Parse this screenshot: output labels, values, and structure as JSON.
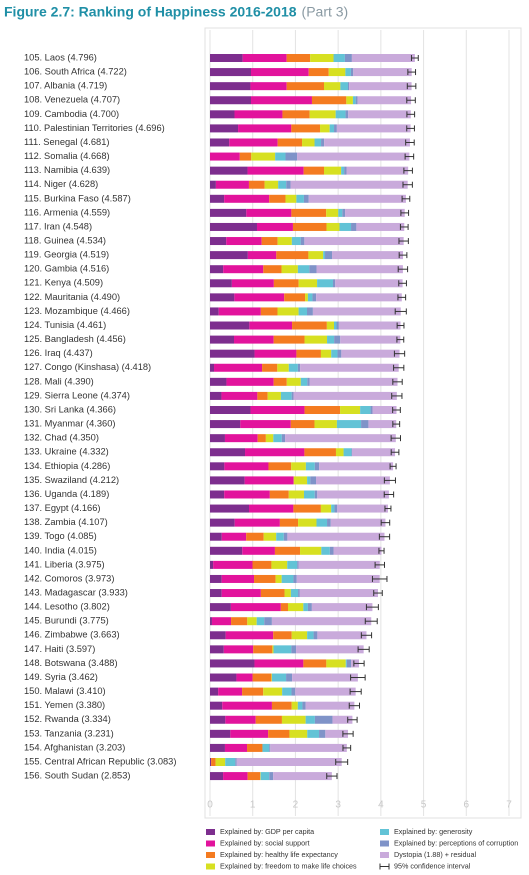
{
  "chart_data": {
    "type": "stacked-bar-horizontal",
    "title": "Figure 2.7: Ranking of Happiness 2016-2018",
    "subtitle": "(Part 3)",
    "categories": [
      "105. Laos (4.796)",
      "106. South Africa (4.722)",
      "107. Albania (4.719)",
      "108. Venezuela (4.707)",
      "109. Cambodia (4.700)",
      "110. Palestinian Territories (4.696)",
      "111. Senegal (4.681)",
      "112. Somalia (4.668)",
      "113. Namibia (4.639)",
      "114. Niger (4.628)",
      "115. Burkina Faso (4.587)",
      "116. Armenia (4.559)",
      "117. Iran (4.548)",
      "118. Guinea (4.534)",
      "119. Georgia (4.519)",
      "120. Gambia (4.516)",
      "121. Kenya (4.509)",
      "122. Mauritania (4.490)",
      "123. Mozambique (4.466)",
      "124. Tunisia (4.461)",
      "125. Bangladesh (4.456)",
      "126. Iraq (4.437)",
      "127. Congo (Kinshasa) (4.418)",
      "128. Mali (4.390)",
      "129. Sierra Leone (4.374)",
      "130. Sri Lanka (4.366)",
      "131. Myanmar (4.360)",
      "132. Chad (4.350)",
      "133. Ukraine (4.332)",
      "134. Ethiopia (4.286)",
      "135. Swaziland (4.212)",
      "136. Uganda (4.189)",
      "137. Egypt (4.166)",
      "138. Zambia (4.107)",
      "139. Togo (4.085)",
      "140. India (4.015)",
      "141. Liberia (3.975)",
      "142. Comoros (3.973)",
      "143. Madagascar (3.933)",
      "144. Lesotho (3.802)",
      "145. Burundi (3.775)",
      "146. Zimbabwe (3.663)",
      "147. Haiti (3.597)",
      "148. Botswana (3.488)",
      "149. Syria (3.462)",
      "150. Malawi (3.410)",
      "151. Yemen (3.380)",
      "152. Rwanda (3.334)",
      "153. Tanzania (3.231)",
      "154. Afghanistan (3.203)",
      "155. Central African Republic (3.083)",
      "156. South Sudan (2.853)"
    ],
    "series": [
      {
        "name": "Explained by: GDP per capita",
        "color": "#7d2e8e",
        "values": [
          0.764,
          0.96,
          0.947,
          0.96,
          0.574,
          0.657,
          0.45,
          0.0,
          0.879,
          0.138,
          0.331,
          0.85,
          1.1,
          0.38,
          0.886,
          0.308,
          0.512,
          0.57,
          0.204,
          0.921,
          0.562,
          1.043,
          0.094,
          0.385,
          0.268,
          0.949,
          0.71,
          0.35,
          0.82,
          0.336,
          0.811,
          0.332,
          0.913,
          0.578,
          0.275,
          0.755,
          0.073,
          0.274,
          0.274,
          0.489,
          0.046,
          0.366,
          0.323,
          1.041,
          0.619,
          0.191,
          0.287,
          0.359,
          0.476,
          0.35,
          0.026,
          0.306
        ]
      },
      {
        "name": "Explained by: social support",
        "color": "#e2139c",
        "values": [
          1.03,
          1.351,
          0.848,
          1.427,
          1.122,
          1.247,
          1.134,
          0.698,
          1.313,
          0.774,
          1.056,
          1.055,
          0.842,
          0.829,
          0.666,
          0.939,
          0.983,
          1.167,
          0.986,
          1.0,
          0.928,
          0.98,
          1.125,
          1.105,
          0.841,
          1.265,
          1.181,
          0.766,
          1.39,
          1.033,
          1.149,
          1.069,
          1.039,
          1.058,
          0.572,
          0.765,
          0.922,
          0.757,
          0.916,
          1.169,
          0.447,
          1.114,
          0.688,
          1.145,
          0.378,
          0.56,
          1.163,
          0.711,
          0.885,
          0.517,
          0.0,
          0.575
        ]
      },
      {
        "name": "Explained by: healthy life expectancy",
        "color": "#f47b20",
        "values": [
          0.551,
          0.469,
          0.874,
          0.805,
          0.637,
          0.672,
          0.571,
          0.268,
          0.477,
          0.366,
          0.38,
          0.815,
          0.785,
          0.375,
          0.752,
          0.428,
          0.581,
          0.489,
          0.39,
          0.815,
          0.723,
          0.574,
          0.357,
          0.308,
          0.242,
          0.831,
          0.555,
          0.192,
          0.739,
          0.532,
          0.0,
          0.443,
          0.644,
          0.426,
          0.41,
          0.588,
          0.443,
          0.505,
          0.555,
          0.168,
          0.38,
          0.433,
          0.449,
          0.538,
          0.44,
          0.495,
          0.463,
          0.614,
          0.499,
          0.361,
          0.105,
          0.295
        ]
      },
      {
        "name": "Explained by: freedom to make life choices",
        "color": "#d7e021",
        "values": [
          0.547,
          0.389,
          0.383,
          0.154,
          0.609,
          0.225,
          0.292,
          0.559,
          0.401,
          0.318,
          0.255,
          0.283,
          0.305,
          0.332,
          0.346,
          0.382,
          0.431,
          0.066,
          0.494,
          0.167,
          0.527,
          0.241,
          0.269,
          0.327,
          0.309,
          0.47,
          0.525,
          0.174,
          0.178,
          0.344,
          0.313,
          0.356,
          0.241,
          0.431,
          0.293,
          0.498,
          0.37,
          0.142,
          0.148,
          0.359,
          0.22,
          0.361,
          0.026,
          0.455,
          0.013,
          0.443,
          0.143,
          0.555,
          0.417,
          0.0,
          0.225,
          0.01
        ]
      },
      {
        "name": "Explained by: generosity",
        "color": "#62c3d6",
        "values": [
          0.266,
          0.13,
          0.178,
          0.064,
          0.232,
          0.103,
          0.153,
          0.243,
          0.07,
          0.188,
          0.177,
          0.095,
          0.27,
          0.207,
          0.043,
          0.269,
          0.372,
          0.106,
          0.197,
          0.059,
          0.166,
          0.148,
          0.212,
          0.153,
          0.252,
          0.244,
          0.566,
          0.198,
          0.187,
          0.209,
          0.074,
          0.252,
          0.076,
          0.247,
          0.177,
          0.2,
          0.233,
          0.275,
          0.169,
          0.107,
          0.176,
          0.151,
          0.419,
          0.025,
          0.331,
          0.218,
          0.108,
          0.217,
          0.276,
          0.158,
          0.235,
          0.202
        ]
      },
      {
        "name": "Explained by: perceptions of corruption",
        "color": "#7f93c8",
        "values": [
          0.164,
          0.055,
          0.027,
          0.047,
          0.062,
          0.066,
          0.072,
          0.27,
          0.056,
          0.102,
          0.113,
          0.064,
          0.125,
          0.086,
          0.164,
          0.167,
          0.053,
          0.088,
          0.138,
          0.055,
          0.143,
          0.089,
          0.053,
          0.052,
          0.045,
          0.047,
          0.172,
          0.078,
          0.01,
          0.1,
          0.135,
          0.06,
          0.067,
          0.087,
          0.085,
          0.085,
          0.033,
          0.078,
          0.041,
          0.093,
          0.18,
          0.089,
          0.11,
          0.1,
          0.141,
          0.089,
          0.077,
          0.411,
          0.147,
          0.025,
          0.035,
          0.091
        ]
      },
      {
        "name": "Dystopia (1.88) + residual",
        "color": "#c9aadb",
        "values": [
          1.474,
          1.368,
          1.462,
          1.25,
          1.464,
          1.726,
          2.009,
          2.63,
          1.443,
          2.742,
          2.275,
          1.397,
          1.121,
          2.325,
          1.662,
          2.023,
          1.577,
          2.004,
          2.057,
          1.444,
          1.407,
          1.362,
          2.308,
          2.06,
          2.417,
          0.56,
          0.651,
          2.592,
          1.008,
          1.732,
          1.73,
          1.677,
          1.186,
          1.28,
          2.273,
          1.124,
          1.901,
          1.942,
          1.83,
          1.417,
          2.326,
          1.149,
          1.582,
          0.184,
          1.54,
          1.414,
          1.139,
          0.467,
          0.531,
          1.792,
          2.457,
          1.374
        ]
      }
    ],
    "scores": [
      4.796,
      4.722,
      4.719,
      4.707,
      4.7,
      4.696,
      4.681,
      4.668,
      4.639,
      4.628,
      4.587,
      4.559,
      4.548,
      4.534,
      4.519,
      4.516,
      4.509,
      4.49,
      4.466,
      4.461,
      4.456,
      4.437,
      4.418,
      4.39,
      4.374,
      4.366,
      4.36,
      4.35,
      4.332,
      4.286,
      4.212,
      4.189,
      4.166,
      4.107,
      4.085,
      4.015,
      3.975,
      3.973,
      3.933,
      3.802,
      3.775,
      3.663,
      3.597,
      3.488,
      3.462,
      3.41,
      3.38,
      3.334,
      3.231,
      3.203,
      3.083,
      2.853
    ],
    "errors": [
      0.08,
      0.09,
      0.1,
      0.1,
      0.09,
      0.09,
      0.1,
      0.1,
      0.1,
      0.11,
      0.09,
      0.09,
      0.09,
      0.11,
      0.09,
      0.11,
      0.09,
      0.09,
      0.13,
      0.08,
      0.08,
      0.12,
      0.12,
      0.11,
      0.12,
      0.09,
      0.08,
      0.11,
      0.09,
      0.07,
      0.13,
      0.11,
      0.07,
      0.1,
      0.12,
      0.06,
      0.11,
      0.17,
      0.1,
      0.14,
      0.14,
      0.12,
      0.13,
      0.12,
      0.17,
      0.13,
      0.12,
      0.11,
      0.12,
      0.09,
      0.14,
      0.12
    ],
    "error_bar_label": "95% confidence interval",
    "error_bar_color": "#333333",
    "xlim": [
      0,
      7
    ],
    "xticks": [
      0,
      1,
      2,
      3,
      4,
      5,
      6,
      7
    ],
    "grid": true
  }
}
